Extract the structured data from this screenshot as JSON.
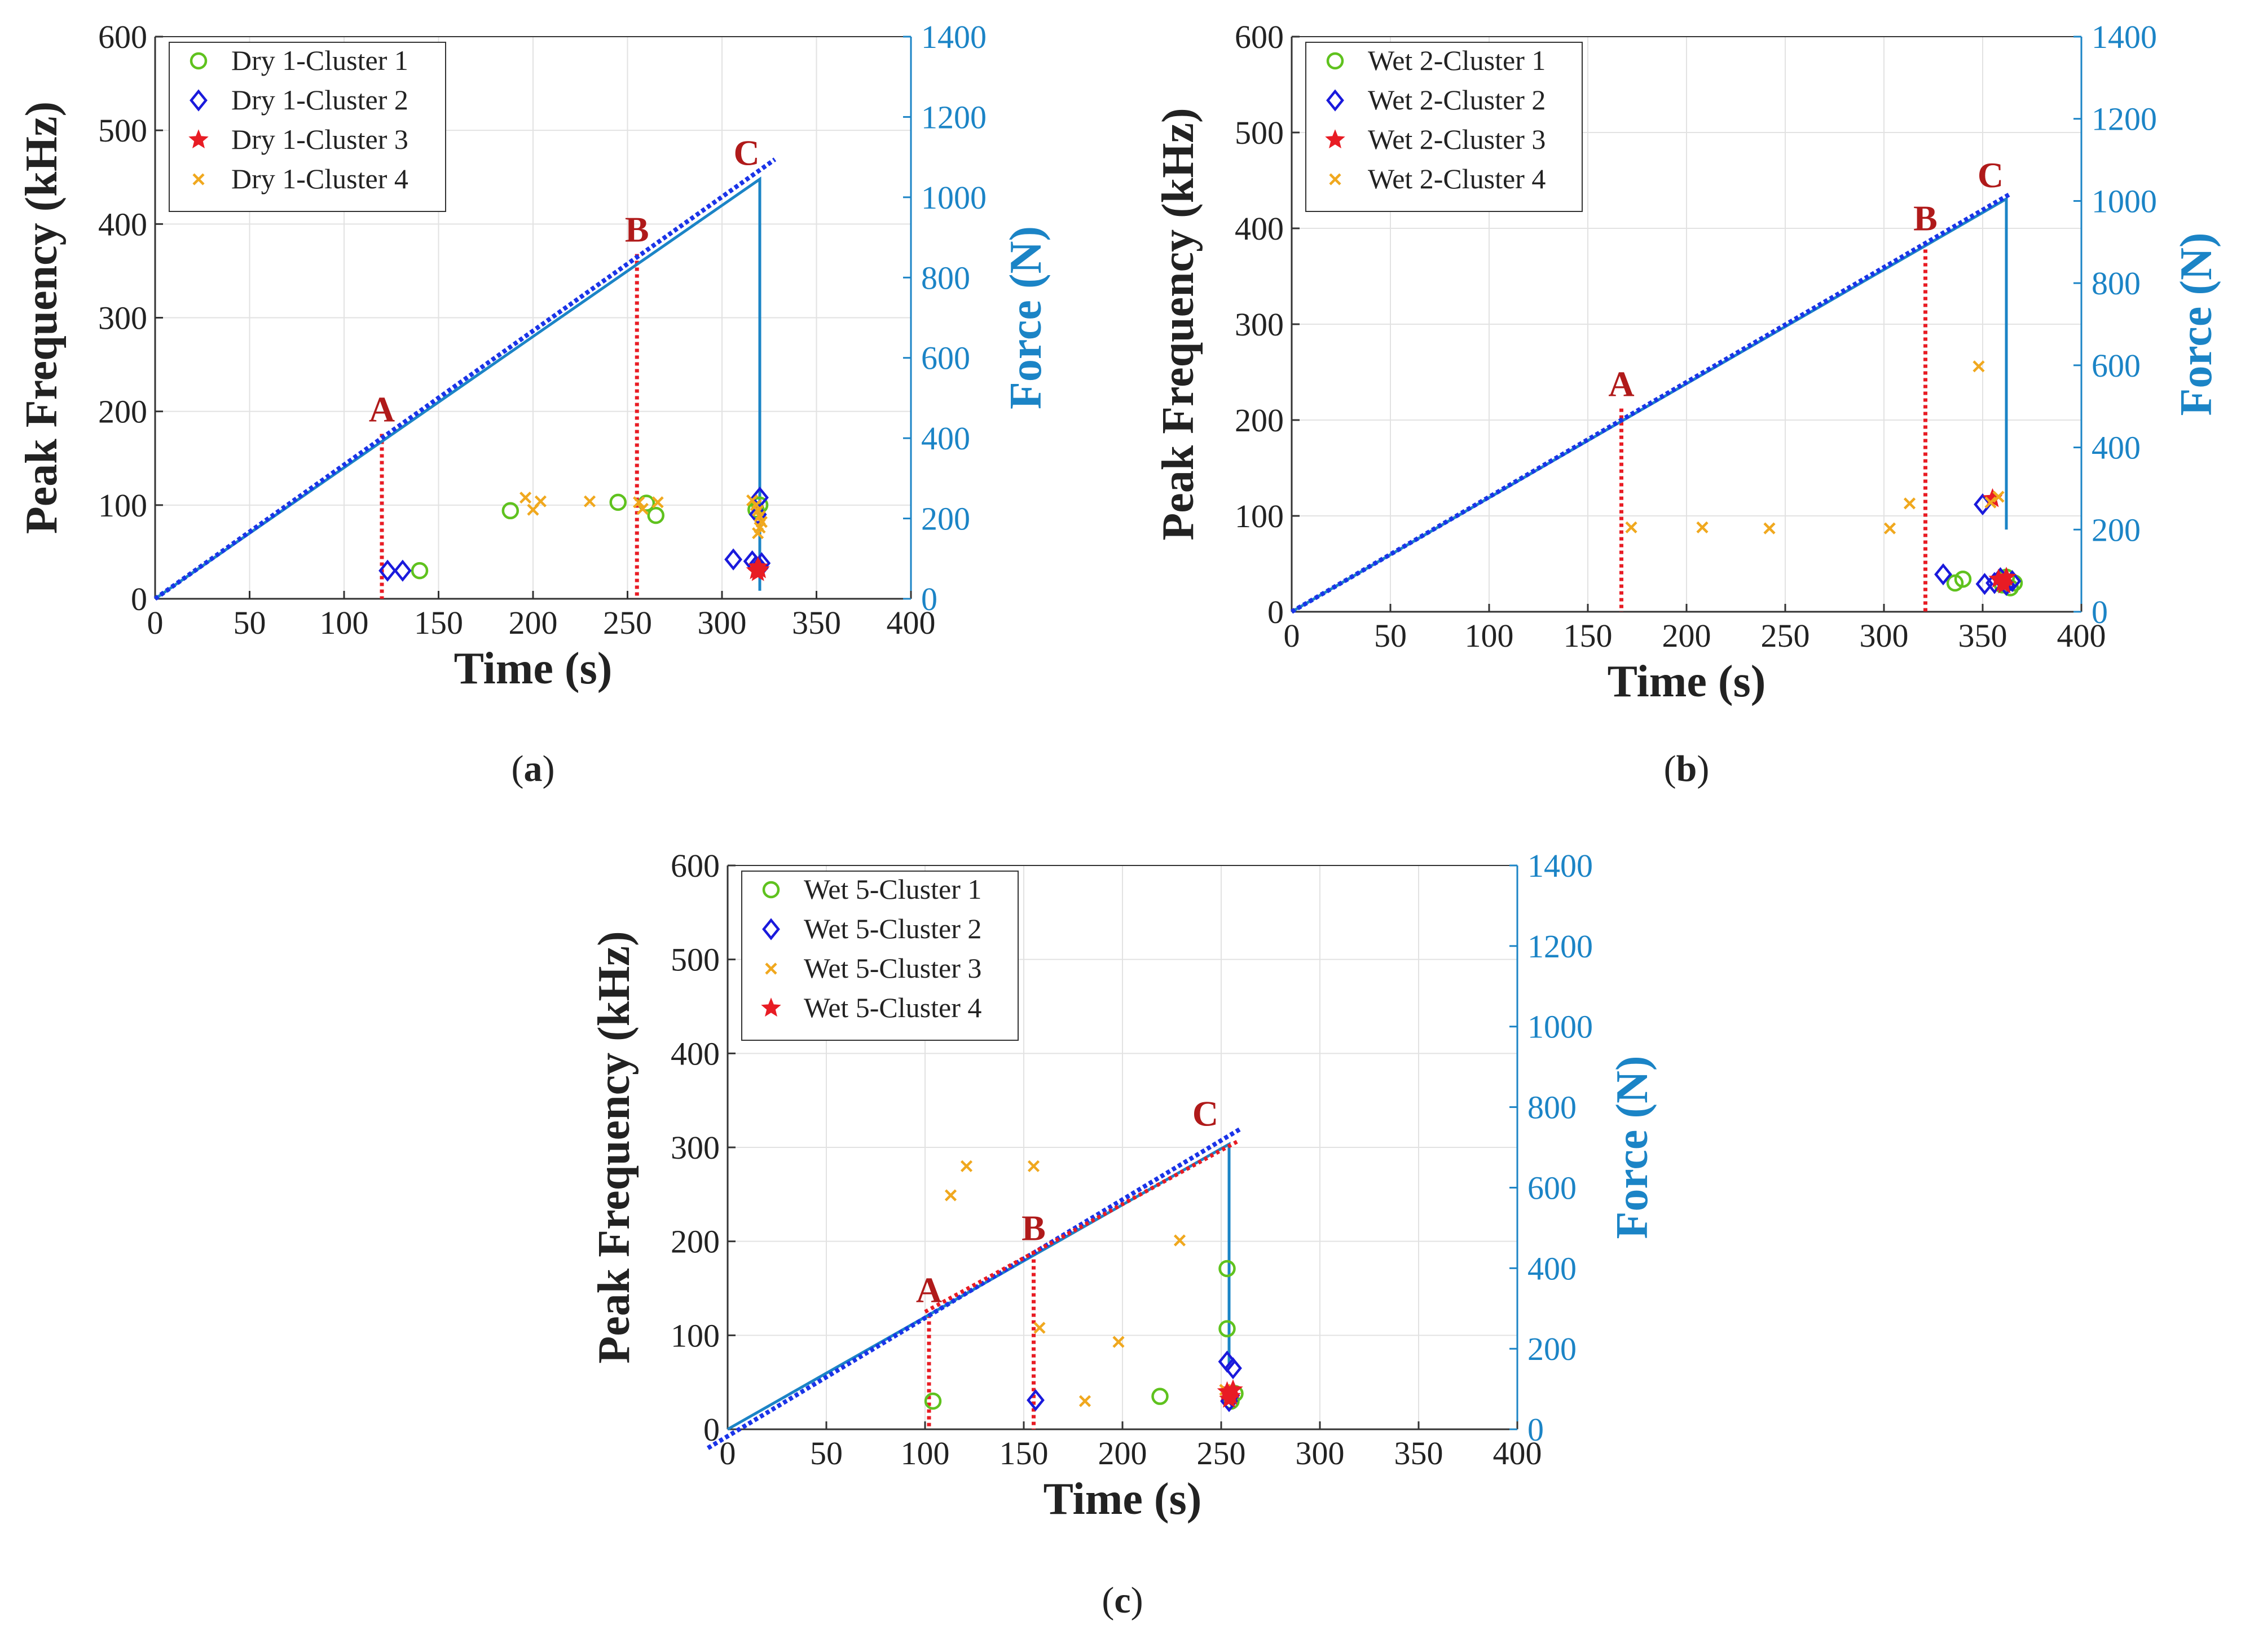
{
  "figure": {
    "axis_titles": {
      "x": "Time (s)",
      "y_left": "Peak Frequency (kHz)",
      "y_right": "Force (N)"
    }
  },
  "colors": {
    "cluster_green": "#5fc21e",
    "cluster_blue": "#1a1adc",
    "cluster_red": "#e81c24",
    "cluster_orange": "#f0a81e",
    "force_line": "#1b84c6",
    "fit_line": "#1a34e8",
    "marker_line": "#e81c24",
    "marker_text": "#b01a1a"
  },
  "chart_data": [
    {
      "id": "a",
      "type": "scatter",
      "caption_letter": "a",
      "xlabel": "Time (s)",
      "ylabel": "Peak Frequency (kHz)",
      "ylabel_right": "Force (N)",
      "xlim": [
        0,
        400
      ],
      "ylim": [
        0,
        600
      ],
      "ylim_right": [
        0,
        1400
      ],
      "xticks": [
        0,
        50,
        100,
        150,
        200,
        250,
        300,
        350,
        400
      ],
      "yticks": [
        0,
        100,
        200,
        300,
        400,
        500,
        600
      ],
      "yticks_right": [
        0,
        200,
        400,
        600,
        800,
        1000,
        1200,
        1400
      ],
      "grid": true,
      "legend_position": "top-left",
      "force_series": [
        [
          0,
          0
        ],
        [
          320,
          1045
        ],
        [
          320,
          20
        ]
      ],
      "fit_line": [
        [
          0,
          0
        ],
        [
          328,
          469
        ]
      ],
      "markers": [
        {
          "label": "A",
          "x": 120,
          "y": 176
        },
        {
          "label": "B",
          "x": 255,
          "y": 368
        },
        {
          "label": "C",
          "x": 313,
          "y": 450
        }
      ],
      "series": [
        {
          "name": "Dry 1-Cluster 1",
          "marker": "circle",
          "color": "#5fc21e",
          "points": [
            [
              140,
              30
            ],
            [
              188,
              94
            ],
            [
              245,
              103
            ],
            [
              260,
              102
            ],
            [
              265,
              89
            ],
            [
              318,
              95
            ],
            [
              320,
              100
            ]
          ]
        },
        {
          "name": "Dry 1-Cluster 2",
          "marker": "diamond",
          "color": "#1a1adc",
          "points": [
            [
              123,
              30
            ],
            [
              131,
              30
            ],
            [
              306,
              42
            ],
            [
              316,
              40
            ],
            [
              318,
              35
            ],
            [
              320,
              108
            ],
            [
              320,
              33
            ],
            [
              319,
              90
            ],
            [
              321,
              38
            ]
          ]
        },
        {
          "name": "Dry 1-Cluster 3",
          "marker": "star",
          "color": "#e81c24",
          "points": [
            [
              318,
              30
            ],
            [
              319,
              34
            ],
            [
              320,
              31
            ],
            [
              319,
              28
            ]
          ]
        },
        {
          "name": "Dry 1-Cluster 4",
          "marker": "x",
          "color": "#f0a81e",
          "points": [
            [
              196,
              108
            ],
            [
              200,
              95
            ],
            [
              204,
              104
            ],
            [
              230,
              104
            ],
            [
              256,
              103
            ],
            [
              258,
              96
            ],
            [
              266,
              103
            ],
            [
              316,
              105
            ],
            [
              318,
              100
            ],
            [
              319,
              94
            ],
            [
              320,
              88
            ],
            [
              321,
              82
            ],
            [
              320,
              76
            ],
            [
              319,
              70
            ]
          ]
        }
      ]
    },
    {
      "id": "b",
      "type": "scatter",
      "caption_letter": "b",
      "xlabel": "Time (s)",
      "ylabel": "Peak Frequency (kHz)",
      "ylabel_right": "Force (N)",
      "xlim": [
        0,
        400
      ],
      "ylim": [
        0,
        600
      ],
      "ylim_right": [
        0,
        1400
      ],
      "xticks": [
        0,
        50,
        100,
        150,
        200,
        250,
        300,
        350,
        400
      ],
      "yticks": [
        0,
        100,
        200,
        300,
        400,
        500,
        600
      ],
      "yticks_right": [
        0,
        200,
        400,
        600,
        800,
        1000,
        1200,
        1400
      ],
      "grid": true,
      "legend_position": "top-left",
      "force_series": [
        [
          0,
          0
        ],
        [
          362,
          1005
        ],
        [
          362,
          200
        ]
      ],
      "fit_line": [
        [
          0,
          0
        ],
        [
          364,
          436
        ]
      ],
      "markers": [
        {
          "label": "A",
          "x": 167,
          "y": 212
        },
        {
          "label": "B",
          "x": 321,
          "y": 385
        },
        {
          "label": "C",
          "x": 354,
          "y": 430
        }
      ],
      "series": [
        {
          "name": "Wet 2-Cluster 1",
          "marker": "circle",
          "color": "#5fc21e",
          "points": [
            [
              336,
              30
            ],
            [
              340,
              34
            ],
            [
              360,
              28
            ],
            [
              362,
              36
            ],
            [
              364,
              25
            ],
            [
              366,
              30
            ]
          ]
        },
        {
          "name": "Wet 2-Cluster 2",
          "marker": "diamond",
          "color": "#1a1adc",
          "points": [
            [
              330,
              39
            ],
            [
              350,
              112
            ],
            [
              351,
              29
            ],
            [
              356,
              30
            ],
            [
              359,
              35
            ],
            [
              362,
              28
            ],
            [
              365,
              32
            ]
          ]
        },
        {
          "name": "Wet 2-Cluster 3",
          "marker": "star",
          "color": "#e81c24",
          "points": [
            [
              355,
              118
            ],
            [
              358,
              34
            ],
            [
              360,
              30
            ],
            [
              362,
              36
            ],
            [
              361,
              28
            ]
          ]
        },
        {
          "name": "Wet 2-Cluster 4",
          "marker": "x",
          "color": "#f0a81e",
          "points": [
            [
              172,
              88
            ],
            [
              208,
              88
            ],
            [
              242,
              87
            ],
            [
              303,
              87
            ],
            [
              313,
              113
            ],
            [
              348,
              256
            ],
            [
              354,
              114
            ],
            [
              358,
              120
            ]
          ]
        }
      ]
    },
    {
      "id": "c",
      "type": "scatter",
      "caption_letter": "c",
      "xlabel": "Time (s)",
      "ylabel": "Peak Frequency (kHz)",
      "ylabel_right": "Force (N)",
      "xlim": [
        0,
        400
      ],
      "ylim": [
        0,
        600
      ],
      "ylim_right": [
        0,
        1400
      ],
      "xticks": [
        0,
        50,
        100,
        150,
        200,
        250,
        300,
        350,
        400
      ],
      "yticks": [
        0,
        100,
        200,
        300,
        400,
        500,
        600
      ],
      "yticks_right": [
        0,
        200,
        400,
        600,
        800,
        1000,
        1200,
        1400
      ],
      "grid": true,
      "legend_position": "top-left",
      "force_series": [
        [
          0,
          0
        ],
        [
          254,
          708
        ],
        [
          254,
          160
        ]
      ],
      "fit_line": [
        [
          -10,
          -20
        ],
        [
          260,
          320
        ]
      ],
      "markers": [
        {
          "label": "A",
          "x": 102,
          "y": 122
        },
        {
          "label": "B",
          "x": 155,
          "y": 188
        },
        {
          "label": "C",
          "x": 242,
          "y": 310
        }
      ],
      "series": [
        {
          "name": "Wet 5-Cluster 1",
          "marker": "circle",
          "color": "#5fc21e",
          "points": [
            [
              104,
              30
            ],
            [
              219,
              35
            ],
            [
              253,
              171
            ],
            [
              253,
              107
            ],
            [
              255,
              30
            ],
            [
              257,
              38
            ]
          ]
        },
        {
          "name": "Wet 5-Cluster 2",
          "marker": "diamond",
          "color": "#1a1adc",
          "points": [
            [
              156,
              31
            ],
            [
              253,
              72
            ],
            [
              254,
              30
            ],
            [
              256,
              65
            ],
            [
              255,
              36
            ]
          ]
        },
        {
          "name": "Wet 5-Cluster 3",
          "marker": "x",
          "color": "#f0a81e",
          "points": [
            [
              113,
              249
            ],
            [
              121,
              280
            ],
            [
              155,
              280
            ],
            [
              158,
              108
            ],
            [
              181,
              30
            ],
            [
              198,
              93
            ],
            [
              229,
              201
            ],
            [
              252,
              42
            ]
          ]
        },
        {
          "name": "Wet 5-Cluster 4",
          "marker": "star",
          "color": "#e81c24",
          "points": [
            [
              253,
              40
            ],
            [
              255,
              35
            ],
            [
              256,
              42
            ],
            [
              254,
              32
            ]
          ]
        }
      ]
    }
  ]
}
